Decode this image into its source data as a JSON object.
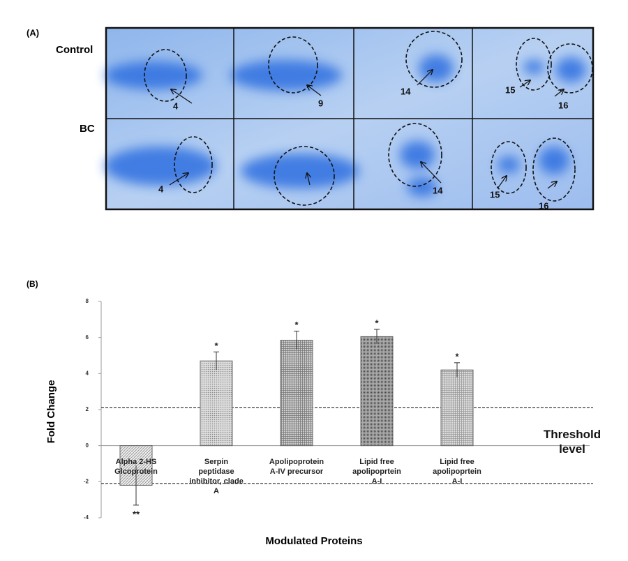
{
  "panel_a": {
    "label": "(A)",
    "rows": [
      {
        "name": "Control",
        "spots": [
          "4",
          "9",
          "14",
          "15",
          "16"
        ]
      },
      {
        "name": "BC",
        "spots": [
          "4",
          "14",
          "15",
          "16"
        ]
      }
    ]
  },
  "chart_data": {
    "type": "bar",
    "panel_label": "(B)",
    "x_label": "Modulated Proteins",
    "y_label": "Fold Change",
    "categories": [
      "Alpha 2-HS\nGlcoprotein",
      "Serpin\npeptidase\ninhibitor, clade\nA",
      "Apolipoprotein\nA-IV precursor",
      "Lipid free\napolipoprtein\nA-I",
      "Lipid free\napolipoprtein\nA-I"
    ],
    "values": [
      -2.2,
      4.7,
      5.85,
      6.05,
      4.2
    ],
    "errors": [
      1.1,
      0.5,
      0.5,
      0.4,
      0.4
    ],
    "annotations": [
      "**",
      "*",
      "*",
      "*",
      "*"
    ],
    "thresholds": [
      2.1,
      -2.1
    ],
    "threshold_label": "Threshold\nlevel",
    "ylim": [
      -4,
      8
    ],
    "yticks": [
      -4,
      -2,
      0,
      2,
      4,
      6,
      8
    ]
  }
}
